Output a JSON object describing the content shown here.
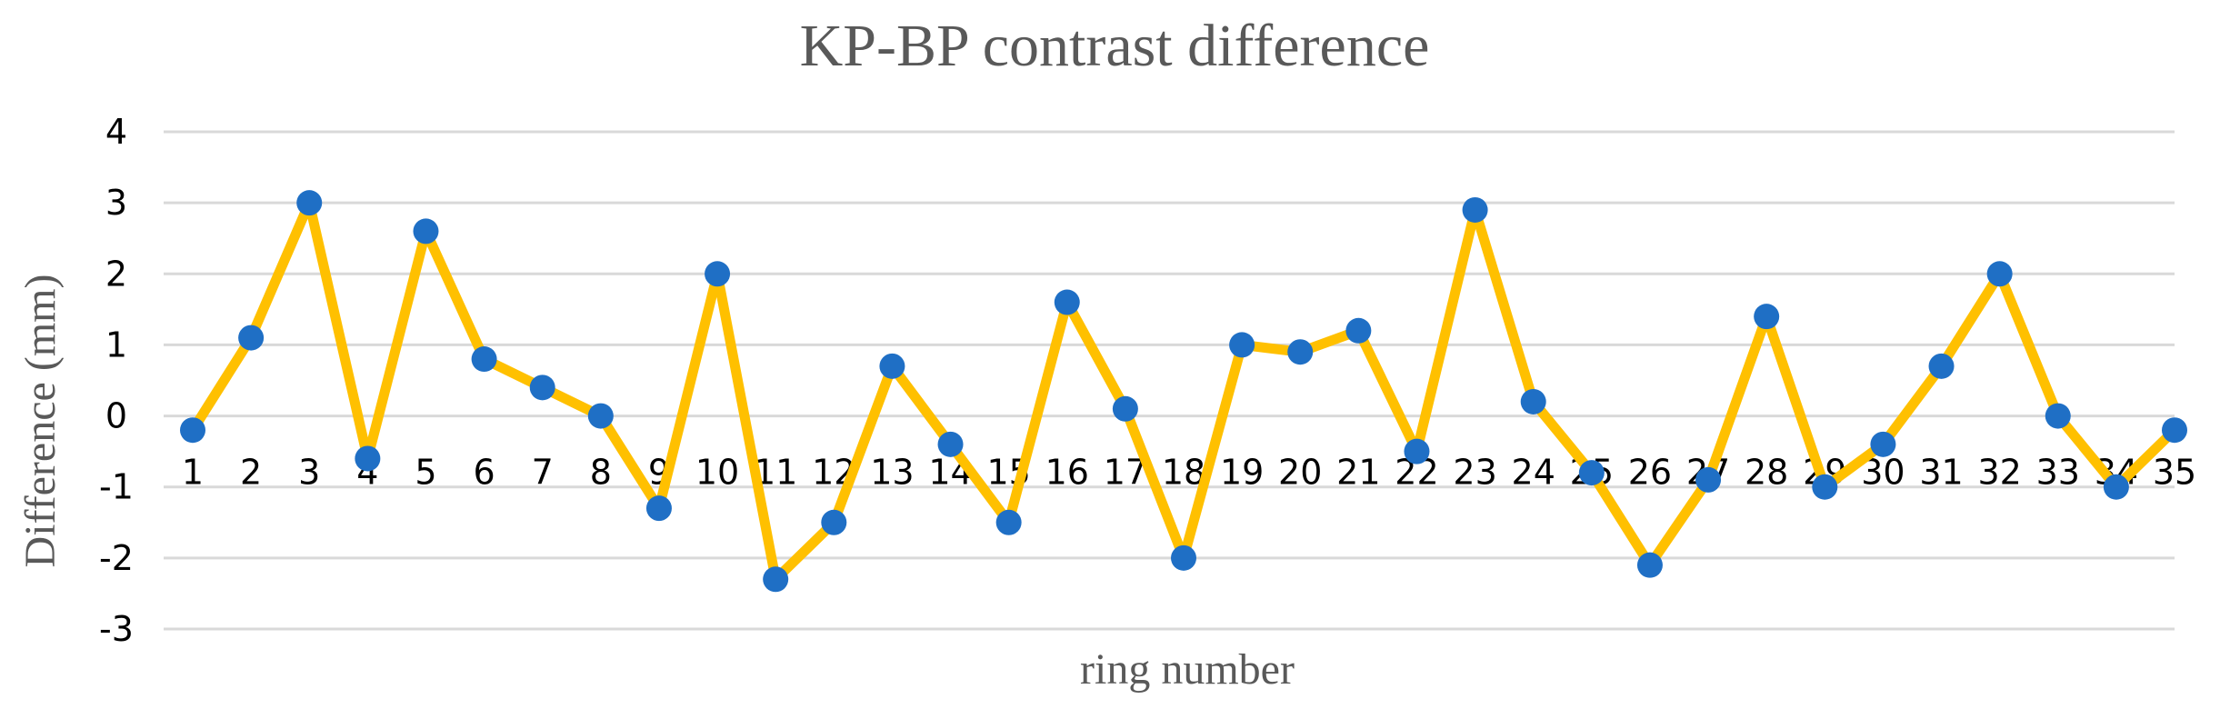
{
  "chart_data": {
    "type": "line",
    "title": "KP-BP contrast difference",
    "xlabel": "ring number",
    "ylabel": "Difference (mm)",
    "ylim": [
      -3,
      4
    ],
    "yticks": [
      "4",
      "3",
      "2",
      "1",
      "0",
      "-1",
      "-2",
      "-3"
    ],
    "grid": true,
    "categories": [
      "1",
      "2",
      "3",
      "4",
      "5",
      "6",
      "7",
      "8",
      "9",
      "10",
      "11",
      "12",
      "13",
      "14",
      "15",
      "16",
      "17",
      "18",
      "19",
      "20",
      "21",
      "22",
      "23",
      "24",
      "25",
      "26",
      "27",
      "28",
      "29",
      "30",
      "31",
      "32",
      "33",
      "34",
      "35"
    ],
    "series": [
      {
        "values": [
          -0.2,
          1.1,
          3.0,
          -0.6,
          2.6,
          0.8,
          0.4,
          0.0,
          -1.3,
          2.0,
          -2.3,
          -1.5,
          0.7,
          -0.4,
          -1.5,
          1.6,
          0.1,
          -2.0,
          1.0,
          0.9,
          1.2,
          -0.5,
          2.9,
          0.2,
          -0.8,
          -2.1,
          -0.9,
          1.4,
          -1.0,
          -0.4,
          0.7,
          2.0,
          0.0,
          -1.0,
          -0.2
        ],
        "line_color": "#FFC000",
        "marker_color": "#1F6FC5"
      }
    ]
  }
}
